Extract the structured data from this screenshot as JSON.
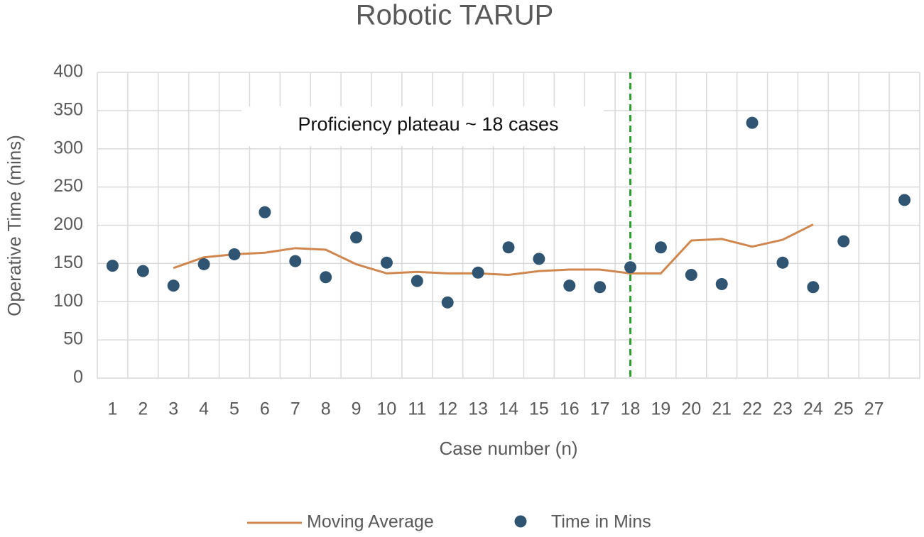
{
  "chart_data": {
    "type": "line",
    "title": "Robotic TARUP",
    "x_label": "Case number (n)",
    "y_label": "Operative Time (mins)",
    "annotation": "Proficiency plateau ~ 18 cases",
    "vline": {
      "category": "18",
      "color": "#2ca02c"
    },
    "categories": [
      "1",
      "2",
      "3",
      "4",
      "5",
      "6",
      "7",
      "8",
      "9",
      "10",
      "11",
      "12",
      "13",
      "14",
      "15",
      "16",
      "17",
      "18",
      "19",
      "20",
      "21",
      "22",
      "23",
      "24",
      "25",
      "27",
      null
    ],
    "series": [
      {
        "name": "Moving Average",
        "type": "line",
        "color": "#d0874f",
        "values": [
          null,
          null,
          144,
          158,
          162,
          164,
          170,
          168,
          149,
          137,
          139,
          137,
          137,
          135,
          140,
          142,
          142,
          137,
          137,
          180,
          182,
          172,
          181,
          201,
          null,
          null,
          null
        ]
      },
      {
        "name": "Time in Mins",
        "type": "scatter",
        "color": "#2f5573",
        "values": [
          147,
          140,
          121,
          149,
          162,
          217,
          153,
          132,
          184,
          151,
          127,
          99,
          138,
          171,
          156,
          121,
          119,
          145,
          171,
          135,
          123,
          334,
          151,
          119,
          179,
          null,
          233
        ]
      }
    ],
    "ylim": [
      0,
      400
    ],
    "yticks": [
      0,
      50,
      100,
      150,
      200,
      250,
      300,
      350,
      400
    ],
    "grid": true,
    "legend": "bottom"
  }
}
